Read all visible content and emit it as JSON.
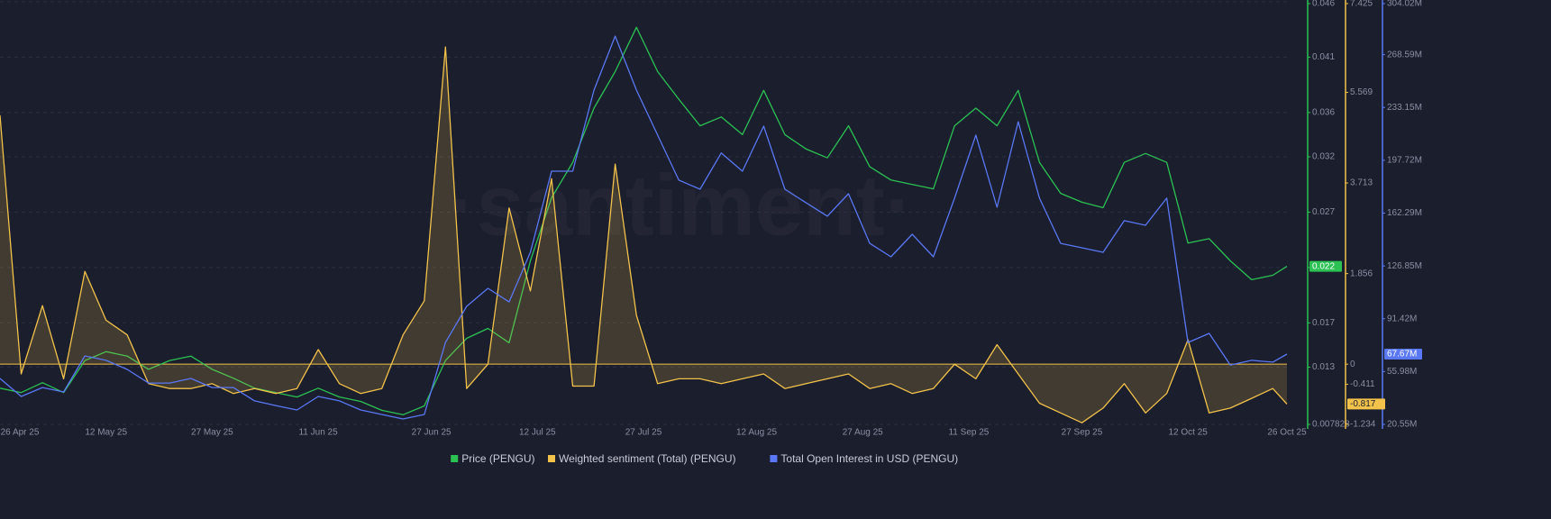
{
  "chart_data": {
    "type": "line",
    "watermark": "·santiment·",
    "x": [
      "2025-04-27",
      "2025-04-30",
      "2025-05-03",
      "2025-05-06",
      "2025-05-09",
      "2025-05-12",
      "2025-05-15",
      "2025-05-18",
      "2025-05-21",
      "2025-05-24",
      "2025-05-27",
      "2025-05-30",
      "2025-06-02",
      "2025-06-05",
      "2025-06-08",
      "2025-06-11",
      "2025-06-14",
      "2025-06-17",
      "2025-06-20",
      "2025-06-23",
      "2025-06-26",
      "2025-06-29",
      "2025-07-02",
      "2025-07-05",
      "2025-07-08",
      "2025-07-11",
      "2025-07-14",
      "2025-07-17",
      "2025-07-20",
      "2025-07-23",
      "2025-07-26",
      "2025-07-29",
      "2025-08-01",
      "2025-08-04",
      "2025-08-07",
      "2025-08-10",
      "2025-08-13",
      "2025-08-16",
      "2025-08-19",
      "2025-08-22",
      "2025-08-25",
      "2025-08-28",
      "2025-08-31",
      "2025-09-03",
      "2025-09-06",
      "2025-09-09",
      "2025-09-12",
      "2025-09-15",
      "2025-09-18",
      "2025-09-21",
      "2025-09-24",
      "2025-09-27",
      "2025-09-30",
      "2025-10-03",
      "2025-10-06",
      "2025-10-09",
      "2025-10-12",
      "2025-10-15",
      "2025-10-18",
      "2025-10-21",
      "2025-10-24",
      "2025-10-26"
    ],
    "xlim": [
      "2025-04-27",
      "2025-10-26"
    ],
    "xticks": [
      {
        "value": "2025-04-26",
        "label": "26 Apr 25"
      },
      {
        "value": "2025-05-12",
        "label": "12 May 25"
      },
      {
        "value": "2025-05-27",
        "label": "27 May 25"
      },
      {
        "value": "2025-06-11",
        "label": "11 Jun 25"
      },
      {
        "value": "2025-06-27",
        "label": "27 Jun 25"
      },
      {
        "value": "2025-07-12",
        "label": "12 Jul 25"
      },
      {
        "value": "2025-07-27",
        "label": "27 Jul 25"
      },
      {
        "value": "2025-08-12",
        "label": "12 Aug 25"
      },
      {
        "value": "2025-08-27",
        "label": "27 Aug 25"
      },
      {
        "value": "2025-09-11",
        "label": "11 Sep 25"
      },
      {
        "value": "2025-09-27",
        "label": "27 Sep 25"
      },
      {
        "value": "2025-10-12",
        "label": "12 Oct 25"
      },
      {
        "value": "2025-10-26",
        "label": "26 Oct 25"
      }
    ],
    "ylim": [
      0.007828,
      0.046
    ],
    "yticks": [
      0.007828,
      0.013,
      0.017,
      0.022,
      0.027,
      0.032,
      0.036,
      0.041,
      0.046
    ],
    "y2lim": [
      -1.234,
      7.425
    ],
    "y2ticks": [
      -1.234,
      -0.411,
      0,
      1.856,
      3.713,
      5.569,
      7.425
    ],
    "y3lim": [
      20550000,
      304020000
    ],
    "y3ticks": [
      {
        "value": 20550000,
        "label": "20.55M"
      },
      {
        "value": 55980000,
        "label": "55.98M"
      },
      {
        "value": 91420000,
        "label": "91.42M"
      },
      {
        "value": 126850000,
        "label": "126.85M"
      },
      {
        "value": 162290000,
        "label": "162.29M"
      },
      {
        "value": 197720000,
        "label": "197.72M"
      },
      {
        "value": 233150000,
        "label": "233.15M"
      },
      {
        "value": 268590000,
        "label": "268.59M"
      },
      {
        "value": 304020000,
        "label": "304.02M"
      }
    ],
    "grid": true,
    "zero_line": true,
    "legend": "bottom",
    "series": [
      {
        "name": "Price (PENGU)",
        "color": "#2bc253",
        "axis": "y",
        "last_value_label": "0.022",
        "values": [
          0.0111,
          0.0107,
          0.0116,
          0.0107,
          0.0136,
          0.0144,
          0.014,
          0.0128,
          0.0136,
          0.014,
          0.0128,
          0.012,
          0.0111,
          0.0107,
          0.0103,
          0.0111,
          0.0103,
          0.0099,
          0.0091,
          0.0087,
          0.0095,
          0.0136,
          0.0156,
          0.0165,
          0.0152,
          0.0226,
          0.0283,
          0.0315,
          0.0364,
          0.0397,
          0.0437,
          0.0397,
          0.0372,
          0.0348,
          0.0356,
          0.034,
          0.038,
          0.034,
          0.0327,
          0.0319,
          0.0348,
          0.0311,
          0.0299,
          0.0295,
          0.0291,
          0.0348,
          0.0364,
          0.0348,
          0.038,
          0.0315,
          0.0287,
          0.0279,
          0.0274,
          0.0315,
          0.0323,
          0.0315,
          0.0242,
          0.0246,
          0.0226,
          0.0209,
          0.0213,
          0.0221
        ]
      },
      {
        "name": "Weighted sentiment (Total) (PENGU)",
        "color": "#f2c24a",
        "axis": "y2",
        "last_value_label": "-0.817",
        "values": [
          5.1,
          -0.2,
          1.2,
          -0.3,
          1.9,
          0.9,
          0.6,
          -0.4,
          -0.5,
          -0.5,
          -0.4,
          -0.6,
          -0.5,
          -0.6,
          -0.5,
          0.3,
          -0.4,
          -0.6,
          -0.5,
          0.6,
          1.3,
          6.5,
          -0.5,
          0.0,
          3.2,
          1.5,
          3.8,
          -0.45,
          -0.45,
          4.1,
          1.0,
          -0.4,
          -0.3,
          -0.3,
          -0.4,
          -0.3,
          -0.2,
          -0.5,
          -0.4,
          -0.3,
          -0.2,
          -0.5,
          -0.4,
          -0.6,
          -0.5,
          0.0,
          -0.3,
          0.4,
          -0.2,
          -0.8,
          -1.0,
          -1.2,
          -0.9,
          -0.4,
          -1.0,
          -0.6,
          0.5,
          -1.0,
          -0.9,
          -0.7,
          -0.5,
          -0.817
        ]
      },
      {
        "name": "Total Open Interest in USD (PENGU)",
        "color": "#5a78f5",
        "axis": "y3",
        "last_value_label": "67.67M",
        "values": [
          51400000,
          39300000,
          45300000,
          42300000,
          66500000,
          63500000,
          57400000,
          48300000,
          48300000,
          51400000,
          45300000,
          45300000,
          36300000,
          33200000,
          30200000,
          39300000,
          36300000,
          30200000,
          27200000,
          24200000,
          27200000,
          75500000,
          99700000,
          111800000,
          102700000,
          136000000,
          190400000,
          190400000,
          244800000,
          281000000,
          244800000,
          214600000,
          184400000,
          178300000,
          202600000,
          190400000,
          220600000,
          178300000,
          169200000,
          160200000,
          175300000,
          142000000,
          133000000,
          148100000,
          133000000,
          172300000,
          214600000,
          166200000,
          223600000,
          172300000,
          142000000,
          139000000,
          136000000,
          157200000,
          154100000,
          172300000,
          75500000,
          81600000,
          60400000,
          63500000,
          62300000,
          67670000
        ]
      }
    ]
  }
}
